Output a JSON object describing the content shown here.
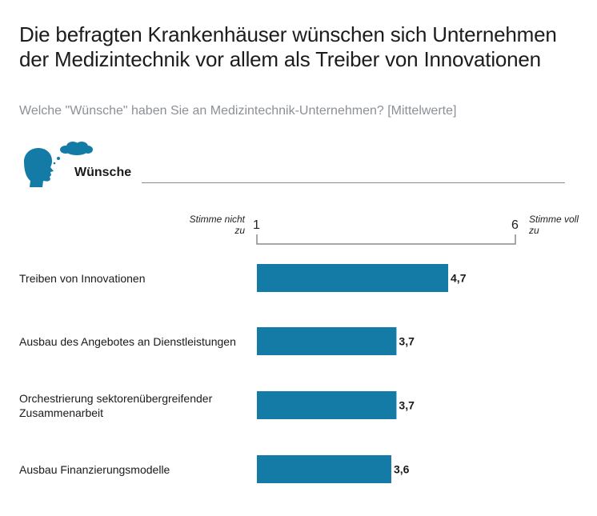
{
  "title": "Die befragten Krankenhäuser wünschen sich Unternehmen der Medizintechnik vor allem als Treiber von Innovationen",
  "subtitle": "Welche \"Wünsche\" haben Sie an Medizintechnik-Unternehmen? [Mittelwerte]",
  "section": {
    "label": "Wünsche",
    "icon": "thinking-head-icon"
  },
  "scale": {
    "low_label": "Stimme nicht zu",
    "high_label": "Stimme voll zu",
    "min_label": "1",
    "max_label": "6"
  },
  "colors": {
    "bar": "#147aa6",
    "icon": "#147aa6"
  },
  "chart_data": {
    "type": "bar",
    "orientation": "horizontal",
    "categories": [
      "Treiben von Innovationen",
      "Ausbau des Angebotes an Dienstleistungen",
      "Orchestrierung sektorenübergreifender Zusammenarbeit",
      "Ausbau Finanzierungsmodelle"
    ],
    "values": [
      4.7,
      3.7,
      3.7,
      3.6
    ],
    "value_labels": [
      "4,7",
      "3,7",
      "3,7",
      "3,6"
    ],
    "xlim": [
      1,
      6
    ],
    "grid": false,
    "legend": "none"
  }
}
